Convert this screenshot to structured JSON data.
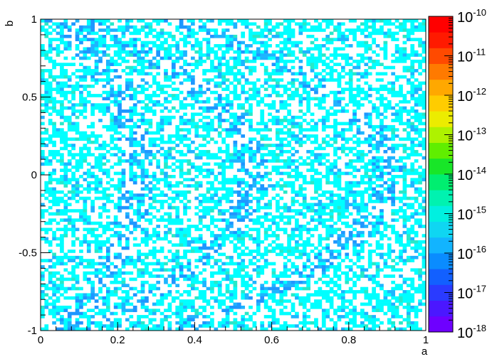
{
  "chart_data": {
    "type": "heatmap",
    "title": "",
    "xlabel": "a",
    "ylabel": "b",
    "xlim": [
      0,
      1
    ],
    "ylim": [
      -1,
      1
    ],
    "x_ticks": [
      "0",
      "0.2",
      "0.4",
      "0.6",
      "0.8",
      "1"
    ],
    "x_tick_values": [
      0,
      0.2,
      0.4,
      0.6,
      0.8,
      1
    ],
    "y_ticks": [
      "-1",
      "-0.5",
      "0",
      "0.5",
      "1"
    ],
    "y_tick_values": [
      -1,
      -0.5,
      0,
      0.5,
      1
    ],
    "grid": false,
    "bins": {
      "nx": 100,
      "ny": 100
    },
    "z_scale": "log",
    "zlim": [
      1e-18,
      1e-10
    ],
    "colorbar": {
      "labels": [
        {
          "base": "10",
          "exp": "-10",
          "value": 1e-10
        },
        {
          "base": "10",
          "exp": "-11",
          "value": 1e-11
        },
        {
          "base": "10",
          "exp": "-12",
          "value": 1e-12
        },
        {
          "base": "10",
          "exp": "-13",
          "value": 1e-13
        },
        {
          "base": "10",
          "exp": "-14",
          "value": 1e-14
        },
        {
          "base": "10",
          "exp": "-15",
          "value": 1e-15
        },
        {
          "base": "10",
          "exp": "-16",
          "value": 1e-16
        },
        {
          "base": "10",
          "exp": "-17",
          "value": 1e-17
        },
        {
          "base": "10",
          "exp": "-18",
          "value": 1e-18
        }
      ],
      "palette": [
        "#6e00ff",
        "#4b17ff",
        "#2a3bff",
        "#1260ff",
        "#0a8cff",
        "#12b4ff",
        "#0fd6f2",
        "#00f0e0",
        "#00f2b0",
        "#00ee70",
        "#18e628",
        "#60ee00",
        "#aef200",
        "#ecec00",
        "#ffcc00",
        "#ffa800",
        "#ff7a00",
        "#ff4a00",
        "#ff1a00",
        "#ff0000"
      ]
    },
    "value_distribution": {
      "cyan_approx": 1e-15,
      "blue_approx": 3e-16,
      "empty_fraction_approx": 0.45
    },
    "dominant_colors": [
      "#00ffff",
      "#1eb4ff",
      "#1e96ff",
      "#28e8c8"
    ]
  }
}
